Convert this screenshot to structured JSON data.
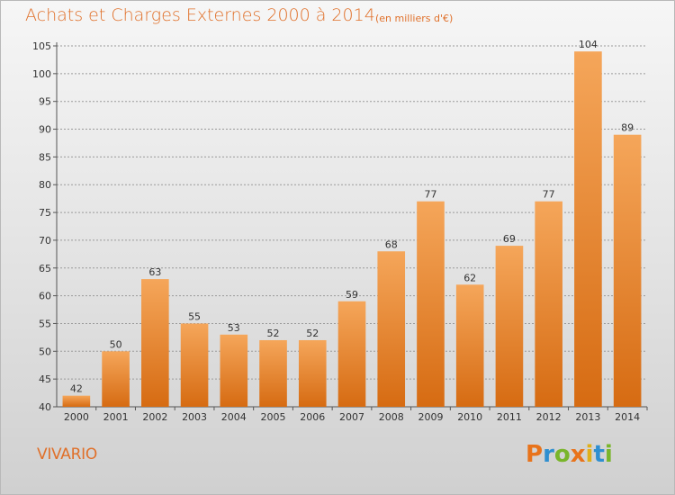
{
  "header": {
    "title": "Achats et Charges Externes 2000 à 2014",
    "subtitle": "(en milliers d'€)"
  },
  "footer": {
    "commune": "VIVARIO",
    "brand": "Proxiti"
  },
  "colors": {
    "accent": "#e0702a",
    "bar_top": "#f5a65a",
    "bar_bottom": "#d66b12",
    "brand_letters": [
      "#e8731b",
      "#2f8fd0",
      "#79b52a",
      "#e8731b",
      "#e0b01a",
      "#2f8fd0",
      "#79b52a"
    ]
  },
  "chart_data": {
    "type": "bar",
    "title": "Achats et Charges Externes 2000 à 2014",
    "subtitle": "(en milliers d'€)",
    "xlabel": "",
    "ylabel": "",
    "categories": [
      "2000",
      "2001",
      "2002",
      "2003",
      "2004",
      "2005",
      "2006",
      "2007",
      "2008",
      "2009",
      "2010",
      "2011",
      "2012",
      "2013",
      "2014"
    ],
    "values": [
      42,
      50,
      63,
      55,
      53,
      52,
      52,
      59,
      68,
      77,
      62,
      69,
      77,
      104,
      89
    ],
    "ylim": [
      40,
      105
    ],
    "yticks": [
      40,
      45,
      50,
      55,
      60,
      65,
      70,
      75,
      80,
      85,
      90,
      95,
      100,
      105
    ],
    "grid": true,
    "legend": "none"
  }
}
